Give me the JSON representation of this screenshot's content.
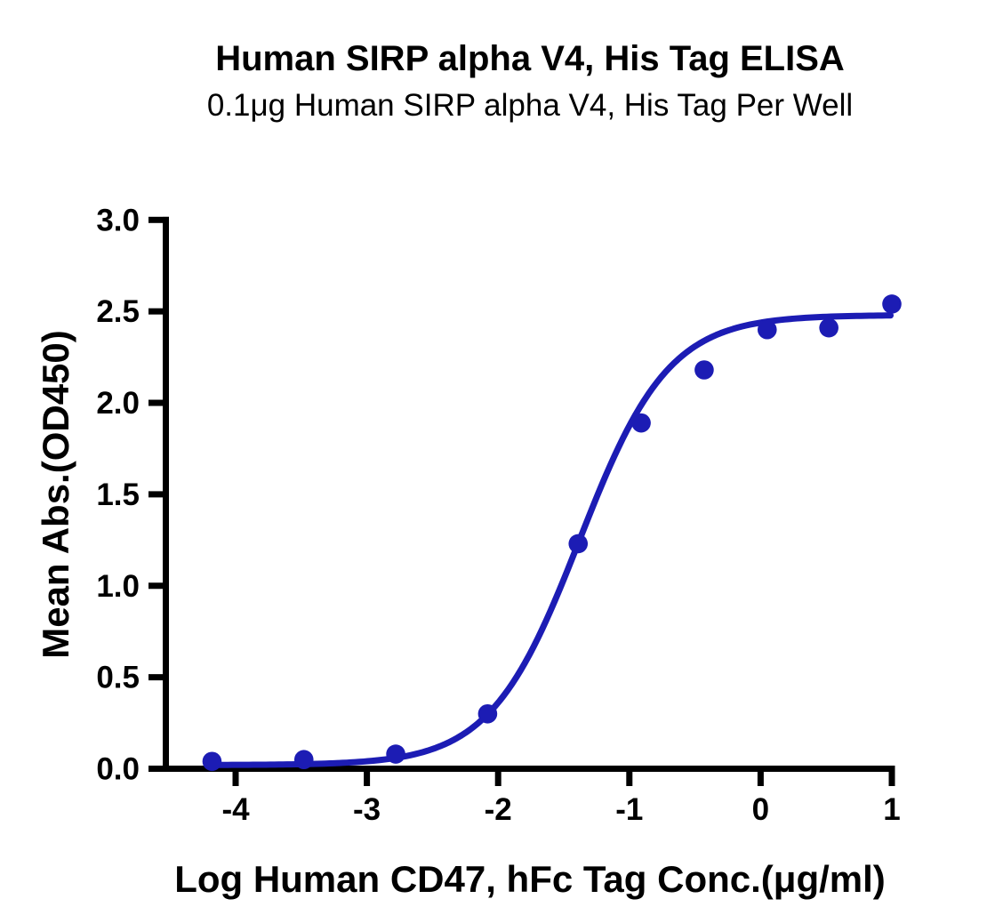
{
  "chart_data": {
    "type": "scatter",
    "title": "Human SIRP alpha V4, His Tag ELISA",
    "subtitle": "0.1μg Human SIRP alpha V4, His Tag Per Well",
    "xlabel": "Log Human CD47, hFc Tag Conc.(μg/ml)",
    "ylabel": "Mean Abs.(OD450)",
    "x": [
      -4.18,
      -3.48,
      -2.78,
      -2.08,
      -1.39,
      -0.91,
      -0.43,
      0.05,
      0.52,
      1.0
    ],
    "y": [
      0.04,
      0.05,
      0.08,
      0.3,
      1.23,
      1.89,
      2.18,
      2.4,
      2.41,
      2.54
    ],
    "curve_fit": {
      "model": "4PL sigmoid",
      "bottom": 0.02,
      "top": 2.48,
      "log_ec50": -1.38,
      "hill": 1.28,
      "x_start": -4.19,
      "x_end": 0.99
    },
    "x_axis": {
      "min": -4.54,
      "max": 1.0,
      "ticks": [
        -4,
        -3,
        -2,
        -1,
        0,
        1
      ],
      "tick_labels": [
        "-4",
        "-3",
        "-2",
        "-1",
        "0",
        "1"
      ]
    },
    "y_axis": {
      "min": 0.0,
      "max": 3.0,
      "ticks": [
        0,
        0.5,
        1,
        1.5,
        2,
        2.5,
        3
      ],
      "tick_labels": [
        "0.0",
        "0.5",
        "1.0",
        "1.5",
        "2.0",
        "2.5",
        "3.0"
      ]
    },
    "grid": false,
    "legend": null,
    "colors": {
      "series": "#1C1CB4",
      "axis": "#000000",
      "background": "#FFFFFF"
    }
  }
}
